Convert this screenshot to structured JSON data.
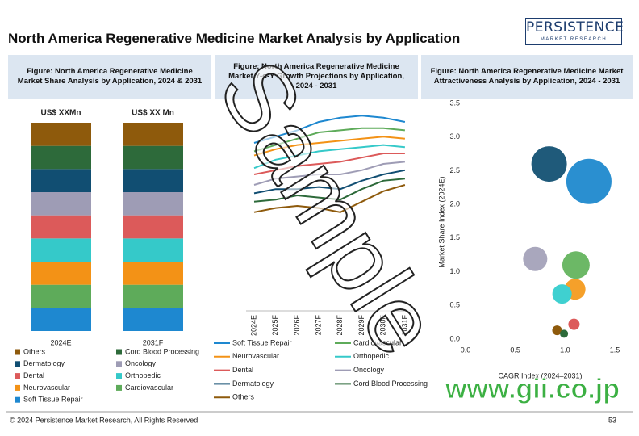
{
  "title": "North America Regenerative Medicine Market Analysis by Application",
  "logo": {
    "name": "PERSISTENCE",
    "tagline": "MARKET RESEARCH"
  },
  "footer": "© 2024 Persistence Market Research, All Rights Reserved",
  "page_number": "53",
  "watermark": "Sample",
  "site": "www.gii.co.jp",
  "chart_data": [
    {
      "type": "stacked_bar",
      "title": "Figure: North America Regenerative Medicine Market Share Analysis by Application, 2024 & 2031",
      "categories": [
        "2024E",
        "2031F"
      ],
      "bar_labels": [
        "US$ XXMn",
        "US$ XX Mn"
      ],
      "series": [
        {
          "name": "Others",
          "color": "#8e5a0c",
          "values": [
            1,
            1
          ]
        },
        {
          "name": "Cord Blood Processing",
          "color": "#2d6a3a",
          "values": [
            1,
            1
          ]
        },
        {
          "name": "Dermatology",
          "color": "#114e72",
          "values": [
            1,
            1
          ]
        },
        {
          "name": "Oncology",
          "color": "#9e9cb5",
          "values": [
            1,
            1
          ]
        },
        {
          "name": "Dental",
          "color": "#dc5a5a",
          "values": [
            1,
            1
          ]
        },
        {
          "name": "Orthopedic",
          "color": "#35c9c9",
          "values": [
            1,
            1
          ]
        },
        {
          "name": "Neurovascular",
          "color": "#f39216",
          "values": [
            1,
            1
          ]
        },
        {
          "name": "Cardiovascular",
          "color": "#5eab5a",
          "values": [
            1,
            1
          ]
        },
        {
          "name": "Soft Tissue Repair",
          "color": "#1e88d0",
          "values": [
            1,
            1
          ]
        }
      ]
    },
    {
      "type": "line",
      "title": "Figure: North America Regenerative Medicine Market Y-o-Y Growth Projections by Application, 2024 - 2031",
      "categories": [
        "2024E",
        "2025F",
        "2026F",
        "2027F",
        "2028F",
        "2029F",
        "2030F",
        "2031F"
      ],
      "ylim": [
        0,
        10
      ],
      "series": [
        {
          "name": "Soft Tissue Repair",
          "color": "#1e88d0",
          "values": [
            8.0,
            8.3,
            8.6,
            9.0,
            9.2,
            9.3,
            9.2,
            9.0
          ]
        },
        {
          "name": "Cardiovascular",
          "color": "#5eab5a",
          "values": [
            7.6,
            7.9,
            8.2,
            8.5,
            8.6,
            8.7,
            8.7,
            8.6
          ]
        },
        {
          "name": "Neurovascular",
          "color": "#f39216",
          "values": [
            7.4,
            7.7,
            7.9,
            8.0,
            8.1,
            8.2,
            8.3,
            8.2
          ]
        },
        {
          "name": "Orthopedic",
          "color": "#35c9c9",
          "values": [
            6.8,
            7.2,
            7.4,
            7.6,
            7.7,
            7.8,
            7.9,
            7.8
          ]
        },
        {
          "name": "Dental",
          "color": "#dc5a5a",
          "values": [
            6.5,
            6.7,
            6.9,
            7.0,
            7.1,
            7.3,
            7.5,
            7.5
          ]
        },
        {
          "name": "Oncology",
          "color": "#9e9cb5",
          "values": [
            6.0,
            6.3,
            6.4,
            6.5,
            6.5,
            6.7,
            7.0,
            7.1
          ]
        },
        {
          "name": "Dermatology",
          "color": "#114e72",
          "values": [
            5.6,
            5.8,
            5.8,
            5.9,
            5.8,
            6.2,
            6.5,
            6.7
          ]
        },
        {
          "name": "Cord Blood Processing",
          "color": "#2d6a3a",
          "values": [
            5.2,
            5.3,
            5.5,
            5.4,
            5.3,
            5.8,
            6.2,
            6.3
          ]
        },
        {
          "name": "Others",
          "color": "#8e5a0c",
          "values": [
            4.7,
            4.9,
            5.0,
            4.9,
            4.7,
            5.2,
            5.7,
            6.0
          ]
        }
      ]
    },
    {
      "type": "bubble",
      "title": "Figure: North America Regenerative Medicine Market Attractiveness Analysis by Application, 2024 - 2031",
      "xlabel": "CAGR Index (2024–2031)",
      "ylabel": "Market Share Index (2024E)",
      "xlim": [
        0,
        1.5
      ],
      "xticks": [
        {
          "value": 0,
          "label": "0.0"
        },
        0.5,
        {
          "value": 1,
          "label": "1.0"
        },
        1.5
      ],
      "ylim": [
        0,
        3.5
      ],
      "yticks": [
        {
          "value": 0,
          "label": "0.0"
        },
        0.5,
        {
          "value": 1,
          "label": "1.0"
        },
        1.5,
        {
          "value": 2,
          "label": "2.0"
        },
        2.5,
        {
          "value": 3,
          "label": "3.0"
        },
        3.5
      ],
      "points": [
        {
          "color": "#1f5a7a",
          "x": 0.84,
          "y": 2.6,
          "size": 22
        },
        {
          "color": "#2a8fd0",
          "x": 1.24,
          "y": 2.34,
          "size": 28
        },
        {
          "color": "#a9a7bd",
          "x": 0.7,
          "y": 1.19,
          "size": 15
        },
        {
          "color": "#6cb866",
          "x": 1.11,
          "y": 1.1,
          "size": 17
        },
        {
          "color": "#f5a02a",
          "x": 1.1,
          "y": 0.74,
          "size": 13
        },
        {
          "color": "#3fd0d0",
          "x": 0.97,
          "y": 0.67,
          "size": 12
        },
        {
          "color": "#dc5a5a",
          "x": 1.09,
          "y": 0.22,
          "size": 7
        },
        {
          "color": "#8e5a0c",
          "x": 0.92,
          "y": 0.13,
          "size": 6
        },
        {
          "color": "#2d6a3a",
          "x": 0.99,
          "y": 0.08,
          "size": 5
        }
      ]
    }
  ]
}
